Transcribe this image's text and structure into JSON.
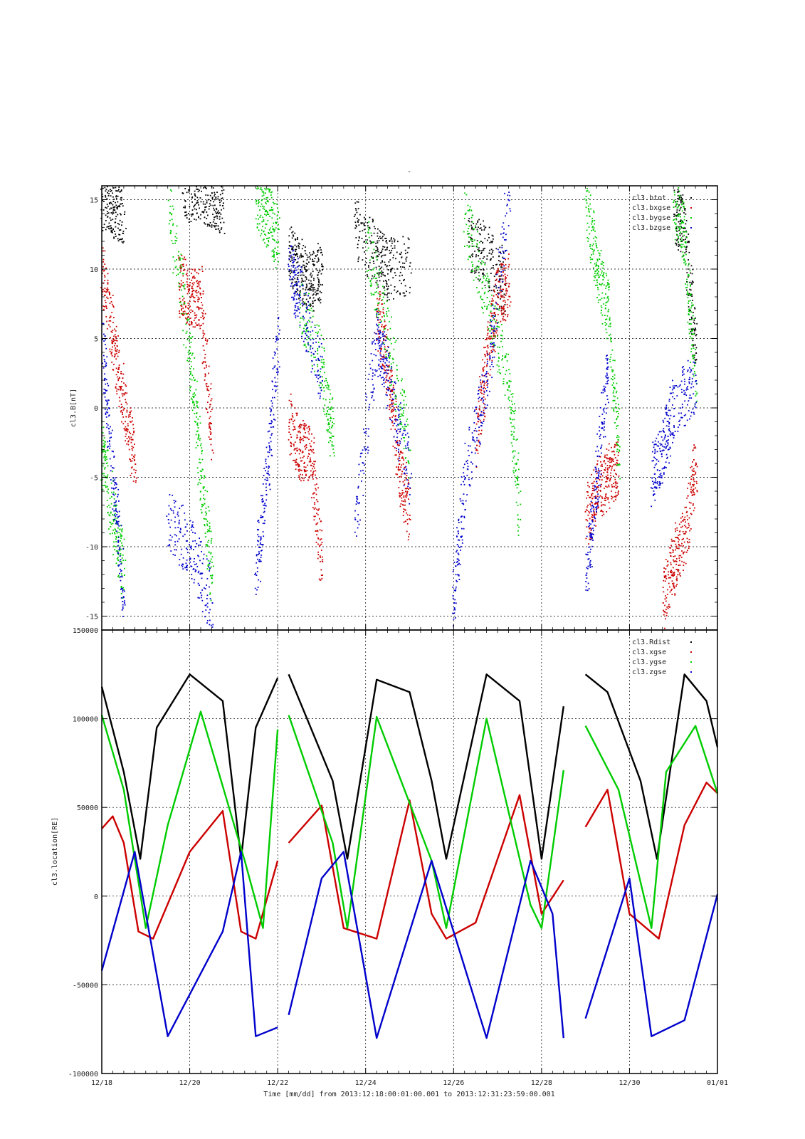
{
  "figure": {
    "title": "-",
    "xaxis_label": "Time [mm/dd]  from 2013:12:18:00:01:00.001  to  2013:12:31:23:59:00.001",
    "x_tick_labels": [
      "12/18",
      "12/20",
      "12/22",
      "12/24",
      "12/26",
      "12/28",
      "12/30",
      "01/01"
    ]
  },
  "colors": {
    "black": "#000000",
    "red": "#cc0000",
    "green": "#00cc00",
    "blue": "#0000cc",
    "grid": "#000000"
  },
  "chart_data": [
    {
      "type": "scatter",
      "ylabel": "cl3.B[nT]",
      "xlim": [
        "2013-12-18",
        "2014-01-01"
      ],
      "ylim": [
        -16,
        16
      ],
      "y_ticks": [
        -15,
        -10,
        -5,
        0,
        5,
        10,
        15
      ],
      "grid": true,
      "legend_position": "top-right",
      "series": [
        {
          "name": "cl3.btot",
          "color": "#000000",
          "segments": [
            {
              "x": [
                "12/18 00:00",
                "12/18 06:00",
                "12/18 12:00"
              ],
              "y": [
                15,
                14.5,
                14
              ]
            },
            {
              "x": [
                "12/19 20:00",
                "12/20 04:00",
                "12/20 12:00",
                "12/20 18:00"
              ],
              "y": [
                15.5,
                15.8,
                15.2,
                14.8
              ]
            },
            {
              "x": [
                "12/22 06:00",
                "12/22 12:00",
                "12/22 18:00",
                "12/23 00:00"
              ],
              "y": [
                11,
                10,
                9,
                10
              ]
            },
            {
              "x": [
                "12/23 18:00",
                "12/24 06:00",
                "12/24 12:00",
                "12/25 00:00"
              ],
              "y": [
                13,
                11,
                10,
                10.5
              ]
            },
            {
              "x": [
                "12/26 08:00",
                "12/26 18:00",
                "12/27 04:00"
              ],
              "y": [
                12,
                11,
                9
              ]
            },
            {
              "x": [
                "12/31 00:00",
                "12/31 06:00",
                "12/31 12:00"
              ],
              "y": [
                14,
                13,
                4
              ]
            }
          ]
        },
        {
          "name": "cl3.bxgse",
          "color": "#cc0000",
          "segments": [
            {
              "x": [
                "12/18 00:00",
                "12/18 06:00",
                "12/18 12:00",
                "12/18 18:00"
              ],
              "y": [
                10,
                5,
                0,
                -4
              ]
            },
            {
              "x": [
                "12/19 18:00",
                "12/20 00:00",
                "12/20 06:00",
                "12/20 12:00"
              ],
              "y": [
                9,
                8,
                8,
                -3
              ]
            },
            {
              "x": [
                "12/22 06:00",
                "12/22 12:00",
                "12/22 18:00",
                "12/23 00:00"
              ],
              "y": [
                -1,
                -3,
                -3,
                -12
              ]
            },
            {
              "x": [
                "12/24 06:00",
                "12/24 12:00",
                "12/24 18:00",
                "12/25 00:00"
              ],
              "y": [
                7,
                3,
                -4,
                -8
              ]
            },
            {
              "x": [
                "12/26 12:00",
                "12/26 18:00",
                "12/27 00:00",
                "12/27 06:00"
              ],
              "y": [
                -3,
                4,
                8,
                9
              ]
            },
            {
              "x": [
                "12/29 00:00",
                "12/29 06:00",
                "12/29 12:00",
                "12/29 18:00"
              ],
              "y": [
                -8,
                -6,
                -5,
                -4
              ]
            },
            {
              "x": [
                "12/30 18:00",
                "12/31 00:00",
                "12/31 06:00",
                "12/31 12:00"
              ],
              "y": [
                -14,
                -11,
                -9,
                -4
              ]
            }
          ]
        },
        {
          "name": "cl3.bygse",
          "color": "#00cc00",
          "segments": [
            {
              "x": [
                "12/18 00:00",
                "12/18 06:00",
                "12/18 12:00"
              ],
              "y": [
                -3,
                -8,
                -12
              ]
            },
            {
              "x": [
                "12/19 12:00",
                "12/20 00:00",
                "12/20 06:00",
                "12/20 12:00"
              ],
              "y": [
                15,
                4,
                -5,
                -12
              ]
            },
            {
              "x": [
                "12/21 12:00",
                "12/21 18:00",
                "12/22 00:00"
              ],
              "y": [
                15,
                14,
                12
              ]
            },
            {
              "x": [
                "12/22 12:00",
                "12/23 00:00",
                "12/23 06:00"
              ],
              "y": [
                8,
                3,
                -2
              ]
            },
            {
              "x": [
                "12/24 00:00",
                "12/24 12:00",
                "12/25 00:00"
              ],
              "y": [
                12,
                5,
                -3
              ]
            },
            {
              "x": [
                "12/26 06:00",
                "12/26 18:00",
                "12/27 06:00",
                "12/27 12:00"
              ],
              "y": [
                14,
                8,
                2,
                -8
              ]
            },
            {
              "x": [
                "12/29 00:00",
                "12/29 06:00",
                "12/29 12:00",
                "12/29 18:00"
              ],
              "y": [
                15,
                10,
                7,
                -3
              ]
            },
            {
              "x": [
                "12/31 00:00",
                "12/31 06:00",
                "12/31 12:00"
              ],
              "y": [
                15,
                12,
                2
              ]
            }
          ]
        },
        {
          "name": "cl3.bzgse",
          "color": "#0000cc",
          "segments": [
            {
              "x": [
                "12/18 00:00",
                "12/18 06:00",
                "12/18 12:00"
              ],
              "y": [
                5,
                -5,
                -14
              ]
            },
            {
              "x": [
                "12/19 12:00",
                "12/20 00:00",
                "12/20 12:00"
              ],
              "y": [
                -8,
                -10,
                -14
              ]
            },
            {
              "x": [
                "12/21 12:00",
                "12/21 18:00",
                "12/22 00:00"
              ],
              "y": [
                -12,
                -5,
                5
              ]
            },
            {
              "x": [
                "12/22 06:00",
                "12/22 12:00",
                "12/23 00:00"
              ],
              "y": [
                10,
                8,
                2
              ]
            },
            {
              "x": [
                "12/23 18:00",
                "12/24 06:00",
                "12/24 12:00",
                "12/25 00:00"
              ],
              "y": [
                -8,
                5,
                2,
                -5
              ]
            },
            {
              "x": [
                "12/26 00:00",
                "12/26 06:00",
                "12/26 18:00",
                "12/27 06:00"
              ],
              "y": [
                -14,
                -5,
                2,
                15
              ]
            },
            {
              "x": [
                "12/29 00:00",
                "12/29 06:00",
                "12/29 12:00"
              ],
              "y": [
                -12,
                -5,
                3
              ]
            },
            {
              "x": [
                "12/30 12:00",
                "12/30 18:00",
                "12/31 00:00",
                "12/31 12:00"
              ],
              "y": [
                -5,
                -3,
                0,
                2
              ]
            }
          ]
        }
      ]
    },
    {
      "type": "line",
      "ylabel": "cl3.location[RE]",
      "xlim": [
        "2013-12-18",
        "2014-01-01"
      ],
      "ylim": [
        -100000,
        150000
      ],
      "y_ticks": [
        -100000,
        -50000,
        0,
        50000,
        100000,
        150000
      ],
      "y_tick_labels": [
        "-100000",
        "-50000",
        "0",
        "50000",
        "100000",
        "150000"
      ],
      "grid": true,
      "legend_position": "top-right",
      "data_gaps": [
        [
          "12/22 00:00",
          "12/22 03:00"
        ],
        [
          "12/28 12:00",
          "12/29 00:00"
        ]
      ],
      "series": [
        {
          "name": "cl3.Rdist",
          "color": "#000000",
          "x": [
            "12/18 00:00",
            "12/18 12:00",
            "12/18 21:00",
            "12/19 06:00",
            "12/20 00:00",
            "12/20 18:00",
            "12/21 04:00",
            "12/21 12:00",
            "12/22 00:00",
            "12/22 06:00",
            "12/23 06:00",
            "12/23 14:00",
            "12/24 06:00",
            "12/25 00:00",
            "12/25 12:00",
            "12/25 20:00",
            "12/26 18:00",
            "12/27 12:00",
            "12/28 00:00",
            "12/28 12:00",
            "12/29 00:00",
            "12/29 12:00",
            "12/30 06:00",
            "12/30 15:00",
            "12/31 06:00",
            "12/31 18:00",
            "01/01 00:00"
          ],
          "y": [
            118000,
            70000,
            21000,
            95000,
            125000,
            110000,
            21000,
            95000,
            123000,
            125000,
            65000,
            21000,
            122000,
            115000,
            65000,
            21000,
            125000,
            110000,
            21000,
            107000,
            125000,
            115000,
            65000,
            21000,
            125000,
            110000,
            84000
          ]
        },
        {
          "name": "cl3.xgse",
          "color": "#cc0000",
          "x": [
            "12/18 00:00",
            "12/18 06:00",
            "12/18 12:00",
            "12/18 20:00",
            "12/19 04:00",
            "12/20 00:00",
            "12/20 18:00",
            "12/21 04:00",
            "12/21 12:00",
            "12/22 00:00",
            "12/22 06:00",
            "12/23 00:00",
            "12/23 12:00",
            "12/24 06:00",
            "12/25 00:00",
            "12/25 12:00",
            "12/25 20:00",
            "12/26 12:00",
            "12/27 12:00",
            "12/28 00:00",
            "12/28 12:00",
            "12/29 00:00",
            "12/29 12:00",
            "12/30 00:00",
            "12/30 16:00",
            "12/31 06:00",
            "12/31 18:00",
            "01/01 00:00"
          ],
          "y": [
            38000,
            45000,
            30000,
            -20000,
            -24000,
            25000,
            48000,
            -20000,
            -24000,
            20000,
            30000,
            51000,
            -18000,
            -24000,
            54000,
            -10000,
            -24000,
            -15000,
            57000,
            -10000,
            9000,
            39000,
            60000,
            -10000,
            -24000,
            40000,
            64000,
            58000
          ]
        },
        {
          "name": "cl3.ygse",
          "color": "#00cc00",
          "x": [
            "12/18 00:00",
            "12/18 12:00",
            "12/19 00:00",
            "12/19 12:00",
            "12/20 06:00",
            "12/21 06:00",
            "12/21 16:00",
            "12/22 00:00",
            "12/22 06:00",
            "12/23 06:00",
            "12/23 14:00",
            "12/24 06:00",
            "12/25 12:00",
            "12/25 20:00",
            "12/26 18:00",
            "12/27 18:00",
            "12/28 00:00",
            "12/28 12:00",
            "12/29 00:00",
            "12/29 18:00",
            "12/30 12:00",
            "12/30 20:00",
            "12/31 12:00",
            "01/01 00:00"
          ],
          "y": [
            102000,
            60000,
            -18000,
            40000,
            104000,
            20000,
            -18000,
            94000,
            102000,
            30000,
            -18000,
            101000,
            20000,
            -18000,
            100000,
            -5000,
            -18000,
            71000,
            96000,
            60000,
            -18000,
            70000,
            96000,
            58000
          ]
        },
        {
          "name": "cl3.zgse",
          "color": "#0000cc",
          "x": [
            "12/18 00:00",
            "12/18 18:00",
            "12/19 12:00",
            "12/20 18:00",
            "12/21 04:00",
            "12/21 12:00",
            "12/22 00:00",
            "12/22 06:00",
            "12/23 00:00",
            "12/23 12:00",
            "12/24 06:00",
            "12/25 12:00",
            "12/26 00:00",
            "12/26 18:00",
            "12/27 18:00",
            "12/28 06:00",
            "12/28 12:00",
            "12/29 00:00",
            "12/30 00:00",
            "12/30 12:00",
            "12/31 06:00",
            "01/01 00:00"
          ],
          "y": [
            -42000,
            25000,
            -79000,
            -20000,
            25000,
            -79000,
            -74000,
            -67000,
            10000,
            25000,
            -80000,
            20000,
            -20000,
            -80000,
            20000,
            -10000,
            -80000,
            -69000,
            10000,
            -79000,
            -70000,
            1000
          ]
        }
      ]
    }
  ]
}
